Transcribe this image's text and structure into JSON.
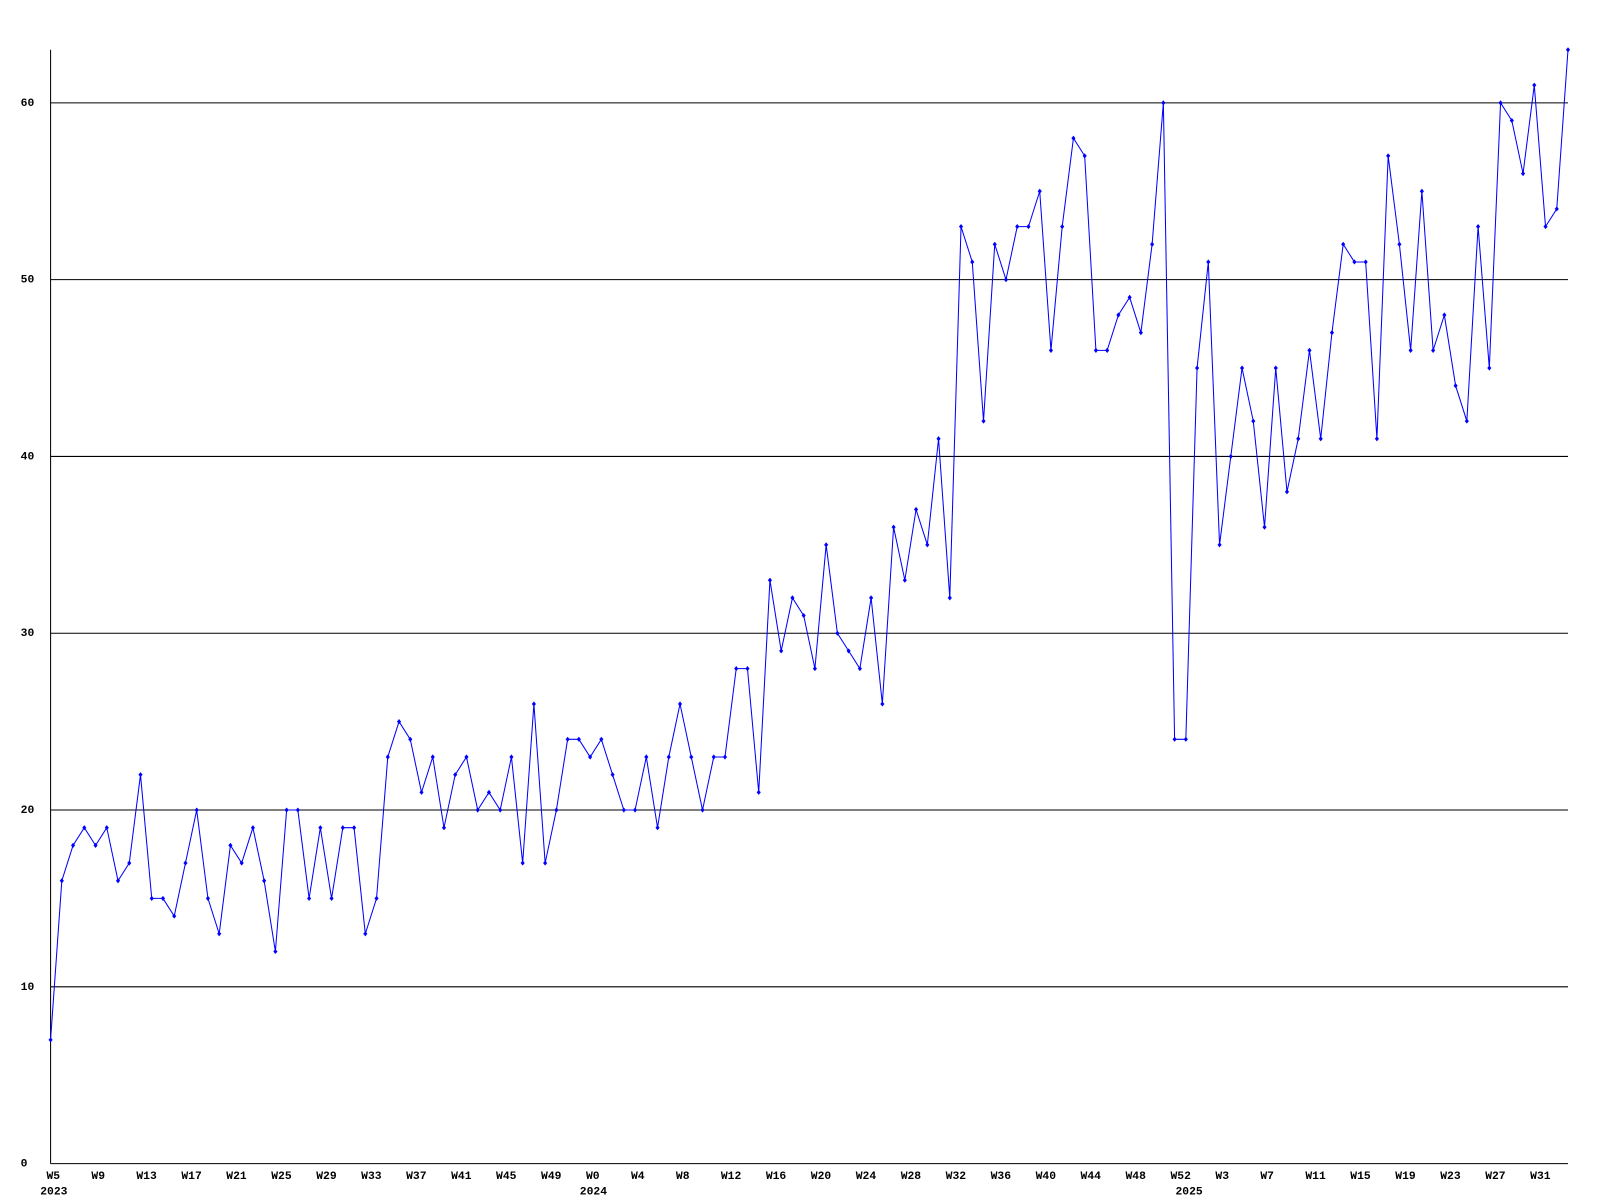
{
  "chart_data": {
    "type": "line",
    "categories": [
      "W5",
      null,
      null,
      null,
      "W9",
      null,
      null,
      null,
      "W13",
      null,
      null,
      null,
      "W17",
      null,
      null,
      null,
      "W21",
      null,
      null,
      null,
      "W25",
      null,
      null,
      null,
      "W29",
      null,
      null,
      null,
      "W33",
      null,
      null,
      null,
      "W37",
      null,
      null,
      null,
      "W41",
      null,
      null,
      null,
      "W45",
      null,
      null,
      null,
      "W49",
      null,
      null,
      null,
      "W0",
      null,
      null,
      null,
      "W4",
      null,
      null,
      null,
      "W8",
      null,
      null,
      null,
      "W12",
      null,
      null,
      null,
      "W16",
      null,
      null,
      null,
      "W20",
      null,
      null,
      null,
      "W24",
      null,
      null,
      null,
      "W28",
      null,
      null,
      null,
      "W32",
      null,
      null,
      null,
      "W36",
      null,
      null,
      null,
      "W40",
      null,
      null,
      null,
      "W44",
      null,
      null,
      null,
      "W48",
      null,
      null,
      null,
      "W52",
      null,
      null,
      null,
      "W3",
      null,
      null,
      null,
      "W7",
      null,
      null,
      null,
      "W11",
      null,
      null,
      null,
      "W15",
      null,
      null,
      null,
      "W19",
      null,
      null,
      null,
      "W23",
      null,
      null,
      null,
      "W27",
      null,
      null,
      null,
      "W31",
      null,
      null,
      null
    ],
    "years": [
      "2023",
      null,
      null,
      null,
      null,
      null,
      null,
      null,
      null,
      null,
      null,
      null,
      null,
      null,
      null,
      null,
      null,
      null,
      null,
      null,
      null,
      null,
      null,
      null,
      null,
      null,
      null,
      null,
      null,
      null,
      null,
      null,
      null,
      null,
      null,
      null,
      null,
      null,
      null,
      null,
      null,
      null,
      null,
      null,
      null,
      null,
      null,
      null,
      "2024",
      null,
      null,
      null,
      null,
      null,
      null,
      null,
      null,
      null,
      null,
      null,
      null,
      null,
      null,
      null,
      null,
      null,
      null,
      null,
      null,
      null,
      null,
      null,
      null,
      null,
      null,
      null,
      null,
      null,
      null,
      null,
      null,
      null,
      null,
      null,
      null,
      null,
      null,
      null,
      null,
      null,
      null,
      null,
      null,
      null,
      null,
      null,
      null,
      null,
      null,
      null,
      null,
      "2025",
      null,
      null,
      null,
      null,
      null,
      null,
      null,
      null,
      null,
      null,
      null,
      null,
      null,
      null,
      null,
      null,
      null,
      null,
      null,
      null,
      null,
      null,
      null,
      null,
      null,
      null,
      null,
      null,
      null,
      null,
      null,
      null,
      null,
      null
    ],
    "values": [
      7,
      16,
      18,
      19,
      18,
      19,
      16,
      17,
      22,
      15,
      15,
      14,
      17,
      20,
      15,
      13,
      18,
      17,
      19,
      16,
      12,
      20,
      20,
      15,
      19,
      15,
      19,
      19,
      13,
      15,
      23,
      25,
      24,
      21,
      23,
      19,
      22,
      23,
      20,
      21,
      20,
      23,
      17,
      26,
      17,
      20,
      24,
      24,
      23,
      24,
      22,
      20,
      20,
      23,
      19,
      23,
      26,
      23,
      20,
      23,
      23,
      28,
      28,
      21,
      33,
      29,
      32,
      31,
      28,
      35,
      30,
      29,
      28,
      32,
      26,
      36,
      33,
      37,
      35,
      41,
      32,
      53,
      51,
      42,
      52,
      50,
      53,
      53,
      55,
      46,
      53,
      58,
      57,
      46,
      46,
      48,
      49,
      47,
      52,
      60,
      24,
      24,
      45,
      51,
      35,
      40,
      45,
      42,
      36,
      45,
      38,
      41,
      46,
      41,
      47,
      52,
      51,
      51,
      41,
      57,
      52,
      46,
      55,
      46,
      48,
      44,
      42,
      53,
      45,
      60,
      59,
      56,
      61,
      53,
      54,
      63
    ],
    "color": "#0000ff",
    "ylim": [
      0,
      63
    ],
    "yticks": [
      0,
      10,
      20,
      30,
      40,
      50,
      60
    ],
    "grid": true
  }
}
